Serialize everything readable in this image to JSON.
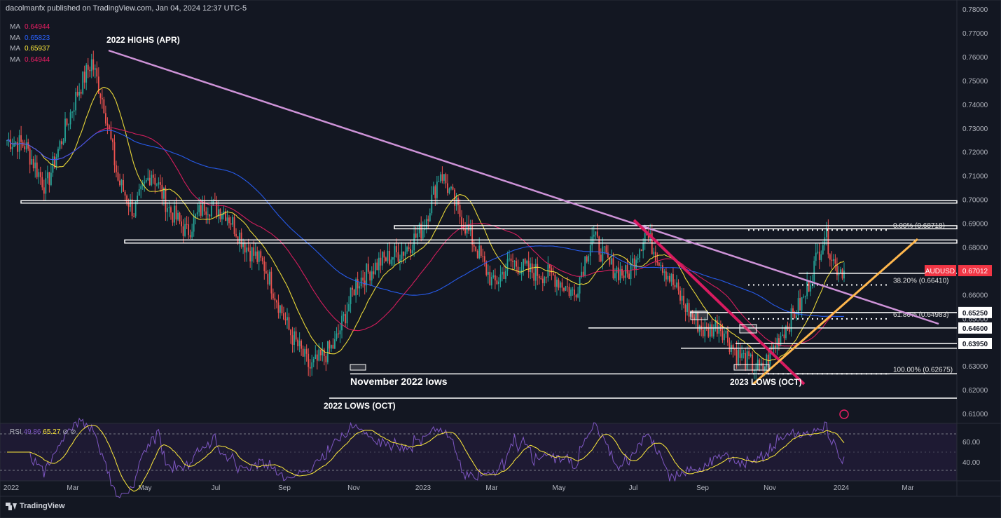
{
  "header": {
    "publisher": "dacolmanfx published on TradingView.com, Jan 04, 2024 12:37 UTC-5"
  },
  "ma_legend": [
    {
      "label": "MA",
      "value": "0.64944",
      "color": "#e91e63"
    },
    {
      "label": "MA",
      "value": "0.65823",
      "color": "#2962ff"
    },
    {
      "label": "MA",
      "value": "0.65937",
      "color": "#ffeb3b"
    },
    {
      "label": "MA",
      "value": "0.64944",
      "color": "#e91e63"
    }
  ],
  "rsi_legend": {
    "label": "RSI",
    "v1": "49.86",
    "v2": "65.27",
    "extra": "⊘ ⊘"
  },
  "footer": {
    "brand": "TradingView"
  },
  "chart_data": {
    "type": "candlestick",
    "symbol": "AUDUSD",
    "last_price": "0.67012",
    "x_labels": [
      "2022",
      "Mar",
      "May",
      "Jul",
      "Sep",
      "Nov",
      "2023",
      "Mar",
      "May",
      "Jul",
      "Sep",
      "Nov",
      "2024",
      "Mar"
    ],
    "y_ticks": [
      "0.78000",
      "0.77000",
      "0.76000",
      "0.75000",
      "0.74000",
      "0.73000",
      "0.72000",
      "0.71000",
      "0.70000",
      "0.69000",
      "0.68000",
      "0.67000",
      "0.66000",
      "0.65000",
      "0.64000",
      "0.63000",
      "0.62000",
      "0.61000"
    ],
    "ylim": [
      0.6065,
      0.7815
    ],
    "rsi_ticks": [
      "60.00",
      "40.00"
    ],
    "annotations": [
      "2022 HIGHS (APR)",
      "November 2022 lows",
      "2022 LOWS (OCT)",
      "2023 LOWS (OCT)"
    ],
    "price_levels": [
      "0.65250",
      "0.64600",
      "0.63950"
    ],
    "fib_levels": [
      {
        "label": "0.00% (0.68718)",
        "value": 0.68718
      },
      {
        "label": "38.20% (0.66410)",
        "value": 0.6641
      },
      {
        "label": "61.80% (0.64983)",
        "value": 0.64983
      },
      {
        "label": "100.00% (0.62675)",
        "value": 0.62675
      }
    ],
    "series": [
      {
        "name": "AUDUSD",
        "waypoints": [
          [
            0,
            0.725
          ],
          [
            10,
            0.723
          ],
          [
            22,
            0.705
          ],
          [
            30,
            0.723
          ],
          [
            40,
            0.745
          ],
          [
            48,
            0.758
          ],
          [
            55,
            0.74
          ],
          [
            63,
            0.708
          ],
          [
            72,
            0.695
          ],
          [
            82,
            0.712
          ],
          [
            92,
            0.696
          ],
          [
            102,
            0.686
          ],
          [
            112,
            0.698
          ],
          [
            124,
            0.695
          ],
          [
            136,
            0.68
          ],
          [
            146,
            0.672
          ],
          [
            160,
            0.645
          ],
          [
            172,
            0.629
          ],
          [
            186,
            0.639
          ],
          [
            198,
            0.665
          ],
          [
            212,
            0.674
          ],
          [
            226,
            0.679
          ],
          [
            236,
            0.688
          ],
          [
            246,
            0.712
          ],
          [
            256,
            0.695
          ],
          [
            266,
            0.68
          ],
          [
            276,
            0.664
          ],
          [
            286,
            0.674
          ],
          [
            296,
            0.67
          ],
          [
            310,
            0.668
          ],
          [
            322,
            0.66
          ],
          [
            332,
            0.685
          ],
          [
            342,
            0.672
          ],
          [
            352,
            0.668
          ],
          [
            362,
            0.686
          ],
          [
            374,
            0.67
          ],
          [
            384,
            0.656
          ],
          [
            396,
            0.644
          ],
          [
            404,
            0.648
          ],
          [
            414,
            0.635
          ],
          [
            428,
            0.628
          ],
          [
            438,
            0.642
          ],
          [
            452,
            0.658
          ],
          [
            464,
            0.686
          ],
          [
            470,
            0.672
          ],
          [
            475,
            0.6701
          ]
        ]
      }
    ]
  }
}
